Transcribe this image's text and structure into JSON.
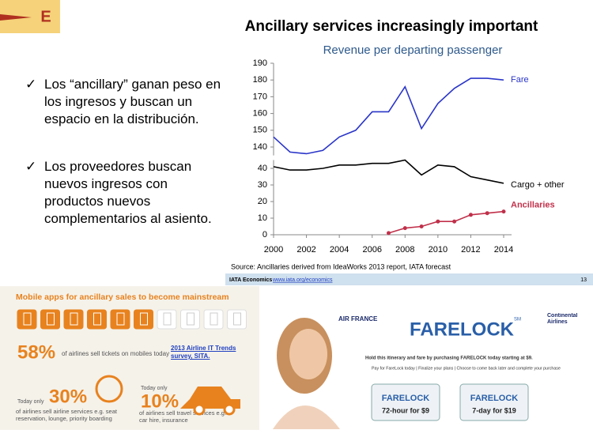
{
  "logo": "E",
  "bullets": [
    "Los “ancillary” ganan peso en los ingresos y buscan un espacio en la distribución.",
    "Los proveedores buscan nuevos ingresos con productos nuevos complementarios al asiento."
  ],
  "chart_data": {
    "type": "line",
    "title": "Ancillary services increasingly important",
    "subtitle": "Revenue per departing passenger",
    "x": [
      2000,
      2001,
      2002,
      2003,
      2004,
      2005,
      2006,
      2007,
      2008,
      2009,
      2010,
      2011,
      2012,
      2013,
      2014
    ],
    "xlim": [
      2000,
      2014
    ],
    "xticks": [
      2000,
      2002,
      2004,
      2006,
      2008,
      2010,
      2012,
      2014
    ],
    "ylim": [
      0,
      45
    ],
    "yticks": [
      0,
      10,
      20,
      30,
      40
    ],
    "y2lim": [
      135,
      190
    ],
    "y2ticks": [
      140,
      150,
      160,
      170,
      180,
      190
    ],
    "series": [
      {
        "name": "Fare",
        "color": "#2a35c8",
        "axis": "y2",
        "values": [
          146,
          137,
          136,
          138,
          146,
          150,
          161,
          161,
          176,
          151,
          166,
          175,
          181,
          181,
          180
        ]
      },
      {
        "name": "Cargo + other",
        "color": "#000000",
        "values": [
          41,
          39,
          39,
          40,
          42,
          42,
          43,
          43,
          45,
          36,
          42,
          41,
          35,
          33,
          31
        ]
      },
      {
        "name": "Ancillaries",
        "color": "#c0304a",
        "values": [
          null,
          null,
          null,
          null,
          null,
          null,
          null,
          1,
          4,
          5,
          8,
          8,
          12,
          13,
          14
        ]
      }
    ],
    "source": "Source: Ancillaries derived from IdeaWorks 2013 report, IATA forecast"
  },
  "footer": {
    "org": "IATA Economics",
    "url": "www.iata.org/economics",
    "page": "13"
  },
  "infographic": {
    "title": "Mobile apps for ancillary sales to become mainstream",
    "stat1": "58%",
    "stat1_text": "of airlines sell tickets on mobiles today",
    "link": "2013 Airline IT Trends survey, SITA.",
    "today1": "Today only",
    "stat2": "30%",
    "stat2_text": "of airlines sell airline services e.g. seat reservation, lounge, priority boarding",
    "today2": "Today only",
    "stat3": "10%",
    "stat3_text": "of airlines sell travel services e.g. car hire, insurance"
  },
  "farelock": {
    "air_france": "AIR FRANCE",
    "brand": "FARELOCK",
    "sm": "SM",
    "continental": "Continental Airlines",
    "hold": "Hold this itinerary and fare by purchasing FARELOCK today starting at $9.",
    "steps": "Pay for FareLock today | Finalize your plans | Choose to come back later and complete your purchase",
    "buttons": [
      {
        "brand": "FARELOCK",
        "label": "72-hour for $9"
      },
      {
        "brand": "FARELOCK",
        "label": "7-day for $19"
      }
    ]
  }
}
